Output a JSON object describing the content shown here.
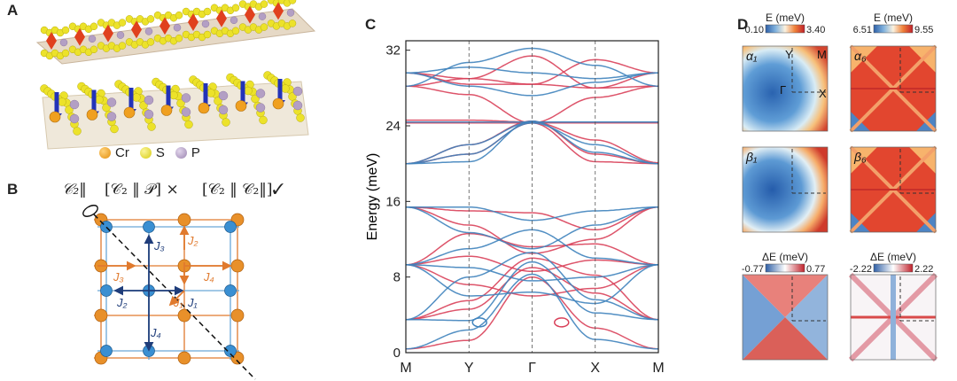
{
  "colors": {
    "red": "#d9415a",
    "blue": "#3f83bd",
    "navy": "#1f3d7a",
    "orange": "#e07a2e",
    "cr": "#f0a020",
    "s": "#ece22a",
    "p": "#b39fc4"
  },
  "panels": {
    "a": {
      "letter": "A",
      "legend": [
        {
          "label": "Cr",
          "color": "#f0a020"
        },
        {
          "label": "S",
          "color": "#ece22a"
        },
        {
          "label": "P",
          "color": "#b39fc4"
        }
      ]
    },
    "b": {
      "letter": "B",
      "symmetry_op": "𝒞₂‖",
      "op1": "[𝒞₂ ‖ 𝒫] ×",
      "op2": "[𝒞₂ ‖ 𝒞₂‖]✓",
      "couplings": {
        "j1": "J₁",
        "j2": "J₂",
        "j3": "J₃",
        "j4": "J₄"
      }
    },
    "c": {
      "letter": "C"
    },
    "d": {
      "letter": "D",
      "colorbars": [
        {
          "title": "E (meV)",
          "min": "0.10",
          "max": "3.40"
        },
        {
          "title": "E (meV)",
          "min": "6.51",
          "max": "9.55"
        },
        {
          "title": "ΔE (meV)",
          "min": "-0.77",
          "max": "0.77"
        },
        {
          "title": "ΔE (meV)",
          "min": "-2.22",
          "max": "2.22"
        }
      ],
      "maps": [
        {
          "label": "α₁"
        },
        {
          "label": "α₆"
        },
        {
          "label": "β₁"
        },
        {
          "label": "β₆"
        }
      ],
      "bz_labels": {
        "y": "Y",
        "m": "M",
        "gamma": "Γ",
        "x": "X"
      }
    }
  },
  "chart_data": {
    "type": "line",
    "title": "",
    "ylabel": "Energy (meV)",
    "xlabel": "",
    "k_path": [
      "M",
      "Y",
      "Γ",
      "X",
      "M"
    ],
    "yticks": [
      0,
      8,
      16,
      24,
      32
    ],
    "ylim": [
      0,
      33
    ],
    "grid": false,
    "series": [
      {
        "color": "red",
        "values": [
          29.6,
          29.0,
          28.4,
          31.0,
          29.6
        ]
      },
      {
        "color": "red",
        "values": [
          29.6,
          28.4,
          28.4,
          28.0,
          29.6
        ]
      },
      {
        "color": "red",
        "values": [
          28.2,
          27.3,
          24.3,
          27.0,
          28.2
        ]
      },
      {
        "color": "red",
        "values": [
          28.2,
          29.0,
          31.4,
          28.0,
          28.2
        ]
      },
      {
        "color": "red",
        "values": [
          20.0,
          22.0,
          24.5,
          21.0,
          20.0
        ]
      },
      {
        "color": "red",
        "values": [
          20.0,
          21.0,
          24.3,
          20.2,
          20.0
        ]
      },
      {
        "color": "red",
        "values": [
          24.6,
          24.6,
          24.4,
          22.5,
          20.1
        ]
      },
      {
        "color": "red",
        "values": [
          24.3,
          24.3,
          24.3,
          24.3,
          24.3
        ]
      },
      {
        "color": "blue",
        "values": [
          29.6,
          30.2,
          29.6,
          29.0,
          29.6
        ]
      },
      {
        "color": "blue",
        "values": [
          29.6,
          28.2,
          27.2,
          28.6,
          29.6
        ]
      },
      {
        "color": "blue",
        "values": [
          28.2,
          30.7,
          32.2,
          30.4,
          28.2
        ]
      },
      {
        "color": "blue",
        "values": [
          20.0,
          21.0,
          24.3,
          22.0,
          20.0
        ]
      },
      {
        "color": "blue",
        "values": [
          20.0,
          20.2,
          24.5,
          21.2,
          20.0
        ]
      },
      {
        "color": "blue",
        "values": [
          20.0,
          22.0,
          24.4,
          24.4,
          24.4
        ]
      },
      {
        "color": "blue",
        "values": [
          24.4,
          24.4,
          24.4,
          24.4,
          24.4
        ]
      },
      {
        "color": "red",
        "values": [
          15.4,
          15.0,
          14.8,
          13.0,
          15.4
        ]
      },
      {
        "color": "red",
        "values": [
          15.4,
          13.5,
          10.5,
          12.0,
          15.4
        ]
      },
      {
        "color": "red",
        "values": [
          9.3,
          12.6,
          11.2,
          11.5,
          9.3
        ]
      },
      {
        "color": "red",
        "values": [
          9.3,
          10.2,
          8.6,
          9.8,
          9.3
        ]
      },
      {
        "color": "red",
        "values": [
          9.3,
          7.2,
          6.0,
          6.8,
          9.3
        ]
      },
      {
        "color": "red",
        "values": [
          3.5,
          5.5,
          10.0,
          8.2,
          3.5
        ]
      },
      {
        "color": "red",
        "values": [
          3.5,
          4.6,
          9.0,
          6.3,
          3.5
        ]
      },
      {
        "color": "red",
        "values": [
          0.4,
          1.3,
          8.0,
          2.6,
          0.4
        ]
      },
      {
        "color": "blue",
        "values": [
          15.4,
          15.4,
          14.0,
          15.0,
          15.4
        ]
      },
      {
        "color": "blue",
        "values": [
          15.4,
          12.7,
          11.0,
          13.5,
          15.4
        ]
      },
      {
        "color": "blue",
        "values": [
          9.3,
          11.0,
          13.0,
          10.0,
          9.3
        ]
      },
      {
        "color": "blue",
        "values": [
          9.3,
          9.0,
          7.6,
          8.0,
          9.3
        ]
      },
      {
        "color": "blue",
        "values": [
          9.3,
          6.0,
          6.4,
          5.2,
          9.3
        ]
      },
      {
        "color": "blue",
        "values": [
          3.5,
          8.0,
          10.6,
          5.6,
          3.5
        ]
      },
      {
        "color": "blue",
        "values": [
          3.5,
          3.4,
          9.6,
          4.2,
          3.5
        ]
      },
      {
        "color": "blue",
        "values": [
          0.4,
          2.4,
          8.3,
          1.4,
          0.4
        ]
      }
    ]
  }
}
